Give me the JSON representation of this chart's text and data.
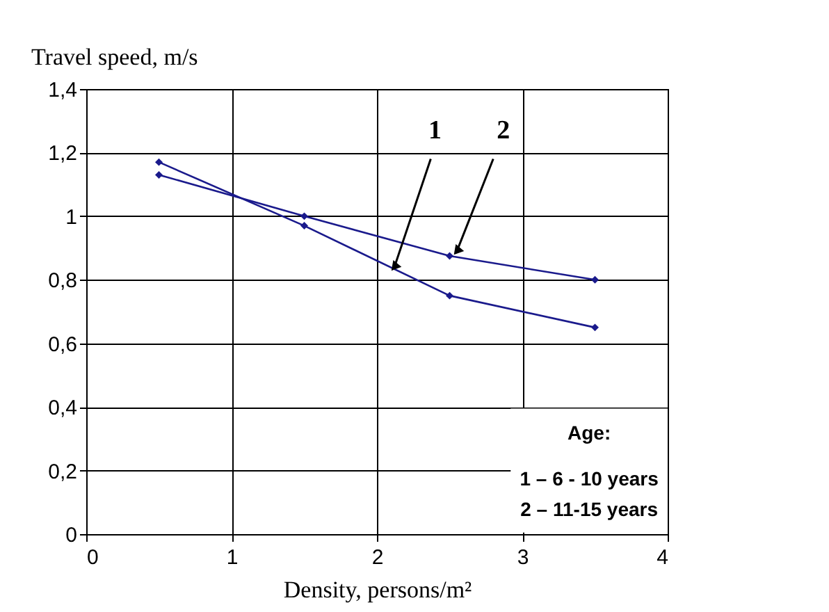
{
  "chart_data": {
    "type": "line",
    "xlabel": "Density, persons/m²",
    "ylabel": "Travel speed, m/s",
    "x": [
      0.5,
      1.5,
      2.5,
      3.5
    ],
    "series": [
      {
        "name": "1",
        "color": "#1a1a8c",
        "values": [
          1.17,
          0.97,
          0.75,
          0.65
        ]
      },
      {
        "name": "2",
        "color": "#1a1a8c",
        "values": [
          1.13,
          1.0,
          0.875,
          0.8
        ]
      }
    ],
    "xlim": [
      0,
      4
    ],
    "xticks": [
      0,
      1,
      2,
      3,
      4
    ],
    "ylim": [
      0,
      1.4
    ],
    "yticks": [
      0,
      {
        "value": 0.2,
        "label": "0,2"
      },
      {
        "value": 0.4,
        "label": "0,4"
      },
      {
        "value": 0.6,
        "label": "0,6"
      },
      {
        "value": 0.8,
        "label": "0,8"
      },
      1,
      {
        "value": 1.2,
        "label": "1,2"
      },
      {
        "value": 1.4,
        "label": "1,4"
      }
    ],
    "grid": true,
    "marker": "diamond",
    "line_style": "solid",
    "annotations": [
      "Age:",
      "1 – 6 - 10 years",
      "2 – 11-15 years"
    ]
  }
}
